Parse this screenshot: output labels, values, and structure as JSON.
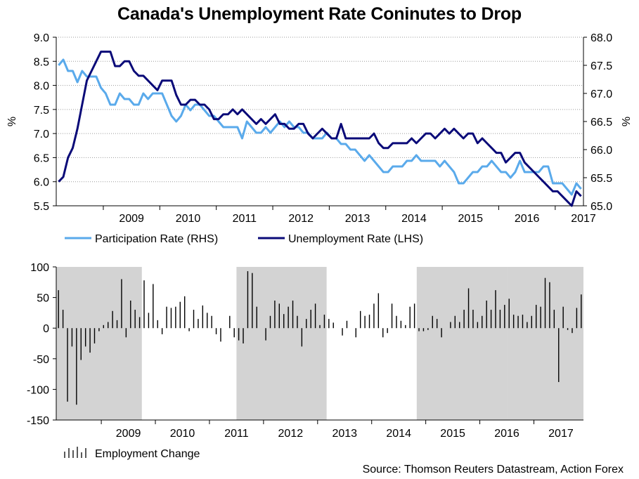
{
  "title": "Canada's Unemployment Rate Coninutes to Drop",
  "source": "Source: Thomson Reuters Datastream, Action Forex",
  "colors": {
    "participation": "#5aaaeb",
    "unemployment": "#0a0a78",
    "bars": "#000000",
    "shade": "#d3d3d3",
    "grid": "#9a9a9a"
  },
  "chart_data": [
    {
      "type": "line",
      "title": "Canada's Unemployment Rate Coninutes to Drop",
      "ylabel_left": "%",
      "ylabel_right": "%",
      "ylim_left": [
        5.5,
        9.0
      ],
      "yticks_left": [
        "9.0",
        "8.5",
        "8.0",
        "7.5",
        "7.0",
        "6.5",
        "6.0",
        "5.5"
      ],
      "ylim_right": [
        65.0,
        68.0
      ],
      "yticks_right": [
        "68.0",
        "67.5",
        "67.0",
        "66.5",
        "66.0",
        "65.5",
        "65.0"
      ],
      "x_start": "2008-03",
      "xticks": [
        "2009",
        "2010",
        "2011",
        "2012",
        "2013",
        "2014",
        "2015",
        "2016",
        "2017"
      ],
      "legend": [
        "Participation Rate (RHS)",
        "Unemployment Rate (LHS)"
      ],
      "series": [
        {
          "name": "Participation Rate (RHS)",
          "axis": "right",
          "values": [
            67.5,
            67.6,
            67.4,
            67.4,
            67.2,
            67.4,
            67.3,
            67.3,
            67.3,
            67.1,
            67.0,
            66.8,
            66.8,
            67.0,
            66.9,
            66.9,
            66.8,
            66.8,
            67.0,
            66.9,
            67.0,
            67.0,
            67.0,
            66.8,
            66.6,
            66.5,
            66.6,
            66.8,
            66.7,
            66.8,
            66.8,
            66.7,
            66.6,
            66.6,
            66.5,
            66.4,
            66.4,
            66.4,
            66.4,
            66.2,
            66.5,
            66.4,
            66.3,
            66.3,
            66.4,
            66.3,
            66.4,
            66.5,
            66.4,
            66.5,
            66.4,
            66.4,
            66.3,
            66.3,
            66.2,
            66.2,
            66.2,
            66.3,
            66.2,
            66.2,
            66.1,
            66.1,
            66.0,
            66.0,
            65.9,
            65.8,
            65.9,
            65.8,
            65.7,
            65.6,
            65.6,
            65.7,
            65.7,
            65.7,
            65.8,
            65.8,
            65.9,
            65.8,
            65.8,
            65.8,
            65.8,
            65.7,
            65.8,
            65.7,
            65.6,
            65.4,
            65.4,
            65.5,
            65.6,
            65.6,
            65.7,
            65.7,
            65.8,
            65.7,
            65.6,
            65.6,
            65.5,
            65.6,
            65.8,
            65.6,
            65.6,
            65.6,
            65.6,
            65.7,
            65.7,
            65.4,
            65.4,
            65.4,
            65.3,
            65.2,
            65.4,
            65.3
          ]
        },
        {
          "name": "Unemployment Rate (LHS)",
          "axis": "left",
          "values": [
            6.0,
            6.1,
            6.5,
            6.7,
            7.1,
            7.6,
            8.1,
            8.3,
            8.5,
            8.7,
            8.7,
            8.7,
            8.4,
            8.4,
            8.5,
            8.5,
            8.3,
            8.2,
            8.2,
            8.1,
            8.0,
            7.9,
            8.1,
            8.1,
            8.1,
            7.8,
            7.6,
            7.6,
            7.7,
            7.7,
            7.6,
            7.6,
            7.5,
            7.3,
            7.3,
            7.4,
            7.4,
            7.5,
            7.4,
            7.5,
            7.4,
            7.3,
            7.2,
            7.3,
            7.2,
            7.3,
            7.4,
            7.2,
            7.2,
            7.1,
            7.1,
            7.2,
            7.2,
            7.0,
            6.9,
            7.0,
            7.1,
            7.0,
            6.9,
            6.9,
            7.2,
            6.9,
            6.9,
            6.9,
            6.9,
            6.9,
            6.9,
            7.0,
            6.8,
            6.7,
            6.7,
            6.8,
            6.8,
            6.8,
            6.8,
            6.9,
            6.8,
            6.9,
            7.0,
            7.0,
            6.9,
            7.0,
            7.1,
            7.0,
            7.1,
            7.0,
            6.9,
            7.0,
            7.0,
            6.8,
            6.9,
            6.8,
            6.7,
            6.6,
            6.6,
            6.4,
            6.5,
            6.6,
            6.6,
            6.4,
            6.3,
            6.2,
            6.1,
            6.0,
            5.9,
            5.8,
            5.8,
            5.7,
            5.6,
            5.5,
            5.8,
            5.7
          ]
        }
      ]
    },
    {
      "type": "bar",
      "title": "",
      "ylim": [
        -150,
        100
      ],
      "yticks": [
        "100",
        "50",
        "0",
        "-50",
        "-100",
        "-150"
      ],
      "x_start": "2008-03",
      "xticks": [
        "2009",
        "2010",
        "2011",
        "2012",
        "2013",
        "2014",
        "2015",
        "2016",
        "2017"
      ],
      "legend": [
        "Employment Change"
      ],
      "shaded_spans_months": [
        [
          0,
          19
        ],
        [
          40,
          60
        ],
        [
          80,
          100
        ],
        [
          100,
          120
        ]
      ],
      "series": [
        {
          "name": "Employment Change",
          "values": [
            62,
            30,
            -120,
            -30,
            -125,
            -52,
            -30,
            -40,
            -25,
            -5,
            5,
            10,
            28,
            13,
            80,
            -15,
            45,
            30,
            18,
            78,
            25,
            72,
            13,
            -10,
            35,
            33,
            35,
            43,
            52,
            -5,
            30,
            15,
            37,
            25,
            20,
            -10,
            -22,
            0,
            20,
            -15,
            -20,
            -25,
            93,
            90,
            35,
            0,
            -20,
            20,
            45,
            40,
            23,
            35,
            45,
            20,
            -30,
            15,
            30,
            40,
            5,
            22,
            15,
            9,
            0,
            -12,
            12,
            0,
            -15,
            28,
            20,
            22,
            40,
            57,
            -15,
            -8,
            40,
            20,
            12,
            5,
            35,
            40,
            -5,
            -5,
            -3,
            20,
            15,
            -15,
            0,
            10,
            20,
            10,
            30,
            65,
            30,
            10,
            20,
            45,
            30,
            62,
            30,
            38,
            48,
            22,
            20,
            22,
            10,
            20,
            38,
            35,
            82,
            75,
            30,
            -88,
            35,
            -3,
            -8,
            33,
            55
          ]
        }
      ]
    }
  ]
}
